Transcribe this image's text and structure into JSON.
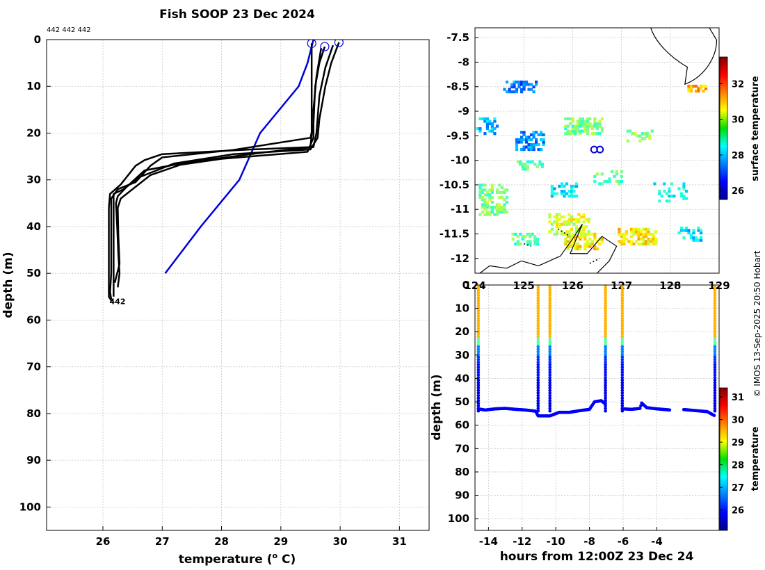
{
  "figure": {
    "title": "Fish SOOP 23 Dec 2024",
    "probe_ids": "442 442 442",
    "credit": "© IMOS 13-Sep-2025 20:50 Hobart"
  },
  "chart_data": [
    {
      "id": "profiles",
      "type": "line",
      "title": "Fish SOOP 23 Dec 2024",
      "xlabel": "temperature (ᵒ C)",
      "ylabel": "depth (m)",
      "xlim": [
        25.05,
        31.5
      ],
      "ylim": [
        105,
        0
      ],
      "xticks": [
        26,
        27,
        28,
        29,
        30,
        31
      ],
      "yticks": [
        0,
        10,
        20,
        30,
        40,
        50,
        60,
        70,
        80,
        90,
        100
      ],
      "grid": true,
      "end_label": "442",
      "start_markers": [
        [
          29.52,
          0.8
        ],
        [
          29.74,
          1.5
        ],
        [
          29.98,
          0.6
        ]
      ],
      "climatology": {
        "name": "climatology",
        "color": "#0000dd",
        "points": [
          [
            29.55,
            0
          ],
          [
            29.45,
            5
          ],
          [
            29.3,
            10
          ],
          [
            28.65,
            20
          ],
          [
            28.3,
            30
          ],
          [
            27.65,
            40
          ],
          [
            27.05,
            50
          ]
        ]
      },
      "series": [
        {
          "name": "profile 1",
          "color": "#000000",
          "points": [
            [
              29.52,
              0.8
            ],
            [
              29.52,
              10
            ],
            [
              29.52,
              20
            ],
            [
              29.5,
              23
            ],
            [
              28.5,
              23.5
            ],
            [
              27.0,
              24.5
            ],
            [
              26.7,
              25.8
            ],
            [
              26.55,
              27
            ],
            [
              26.3,
              31
            ],
            [
              26.12,
              33
            ],
            [
              26.1,
              36
            ],
            [
              26.1,
              45
            ],
            [
              26.1,
              51
            ],
            [
              26.1,
              55
            ],
            [
              26.15,
              56
            ]
          ]
        },
        {
          "name": "profile 2",
          "color": "#000000",
          "points": [
            [
              29.74,
              1.5
            ],
            [
              29.65,
              5
            ],
            [
              29.58,
              10
            ],
            [
              29.55,
              18
            ],
            [
              29.5,
              21
            ],
            [
              28.2,
              23.6
            ],
            [
              27.0,
              25.2
            ],
            [
              26.8,
              27
            ],
            [
              26.55,
              30.5
            ],
            [
              26.25,
              32
            ],
            [
              26.14,
              34
            ],
            [
              26.14,
              40
            ],
            [
              26.14,
              50
            ],
            [
              26.12,
              54
            ],
            [
              26.14,
              55.5
            ]
          ]
        },
        {
          "name": "profile 3",
          "color": "#000000",
          "points": [
            [
              29.98,
              0.6
            ],
            [
              29.85,
              5
            ],
            [
              29.75,
              10
            ],
            [
              29.65,
              17
            ],
            [
              29.62,
              21
            ],
            [
              29.5,
              23.5
            ],
            [
              28.2,
              24.5
            ],
            [
              27.2,
              26.5
            ],
            [
              26.6,
              29.5
            ],
            [
              26.35,
              32
            ],
            [
              26.18,
              33
            ],
            [
              26.18,
              40
            ],
            [
              26.18,
              52
            ],
            [
              26.18,
              55
            ]
          ]
        },
        {
          "name": "profile 4",
          "color": "#000000",
          "points": [
            [
              29.88,
              1.2
            ],
            [
              29.75,
              6
            ],
            [
              29.65,
              12
            ],
            [
              29.6,
              20
            ],
            [
              29.55,
              23
            ],
            [
              28.8,
              24
            ],
            [
              27.4,
              26.3
            ],
            [
              26.7,
              28
            ],
            [
              26.4,
              31.5
            ],
            [
              26.25,
              33.5
            ],
            [
              26.22,
              35
            ],
            [
              26.24,
              40
            ],
            [
              26.26,
              46
            ],
            [
              26.28,
              50
            ],
            [
              26.25,
              53
            ]
          ]
        },
        {
          "name": "profile 5",
          "color": "#000000",
          "points": [
            [
              29.68,
              1.8
            ],
            [
              29.6,
              8
            ],
            [
              29.55,
              15
            ],
            [
              29.55,
              21
            ],
            [
              29.45,
              24
            ],
            [
              28.0,
              25.5
            ],
            [
              27.3,
              26.8
            ],
            [
              26.8,
              29
            ],
            [
              26.5,
              32
            ],
            [
              26.3,
              34
            ],
            [
              26.25,
              36
            ],
            [
              26.26,
              42
            ],
            [
              26.28,
              48
            ],
            [
              26.22,
              51
            ],
            [
              26.2,
              52
            ]
          ]
        }
      ]
    },
    {
      "id": "map",
      "type": "heatmap",
      "xlim": [
        124,
        129
      ],
      "ylim": [
        -12.3,
        -7.3
      ],
      "xticks": [
        "124",
        "125",
        "126",
        "127",
        "128",
        "129"
      ],
      "yticks": [
        "-7.5",
        "-8",
        "-8.5",
        "-9",
        "-9.5",
        "-10",
        "-10.5",
        "-11",
        "-11.5",
        "-12"
      ],
      "colorbar": {
        "label": "surface temperature",
        "range": [
          25.5,
          33.5
        ],
        "ticks": [
          "26",
          "28",
          "30",
          "32"
        ]
      },
      "drop_positions": [
        [
          126.44,
          -9.78
        ],
        [
          126.56,
          -9.78
        ]
      ]
    },
    {
      "id": "timeseries",
      "type": "scatter",
      "xlabel": "hours from 12:00Z 23 Dec 24",
      "ylabel": "depth (m)",
      "xlim": [
        -14.8,
        -0.3
      ],
      "ylim": [
        105,
        0
      ],
      "xticks": [
        "-14",
        "-12",
        "-10",
        "-8",
        "-6",
        "-4"
      ],
      "yticks": [
        "0",
        "10",
        "20",
        "30",
        "40",
        "50",
        "60",
        "70",
        "80",
        "90",
        "100"
      ],
      "colorbar": {
        "label": "temperature",
        "range": [
          25.1,
          31.4
        ],
        "ticks": [
          "26",
          "27",
          "28",
          "29",
          "30",
          "31"
        ]
      },
      "casts": [
        -14.6,
        -11.05,
        -10.35,
        -7.05,
        -6.05,
        -0.55
      ],
      "bottom_track": [
        [
          -14.6,
          53
        ],
        [
          -14.2,
          53.5
        ],
        [
          -13.6,
          53
        ],
        [
          -13.0,
          52.8
        ],
        [
          -12.4,
          53.2
        ],
        [
          -11.8,
          53.5
        ],
        [
          -11.2,
          54
        ],
        [
          -11.05,
          56
        ],
        [
          -10.35,
          56
        ],
        [
          -9.8,
          54.5
        ],
        [
          -9.2,
          54.5
        ],
        [
          -8.6,
          53.8
        ],
        [
          -8.0,
          53.2
        ],
        [
          -7.7,
          50
        ],
        [
          -7.3,
          49.5
        ],
        [
          -7.05,
          51
        ],
        [
          -6.05,
          53
        ],
        [
          -5.5,
          53.2
        ],
        [
          -5.0,
          52.8
        ],
        [
          -4.9,
          50.5
        ],
        [
          -4.6,
          52.5
        ],
        [
          -4.0,
          53
        ],
        [
          -3.2,
          53.5
        ],
        [
          -2.4,
          53.3
        ],
        [
          -1.6,
          53.8
        ],
        [
          -1.0,
          54.2
        ],
        [
          -0.55,
          56
        ]
      ]
    }
  ]
}
